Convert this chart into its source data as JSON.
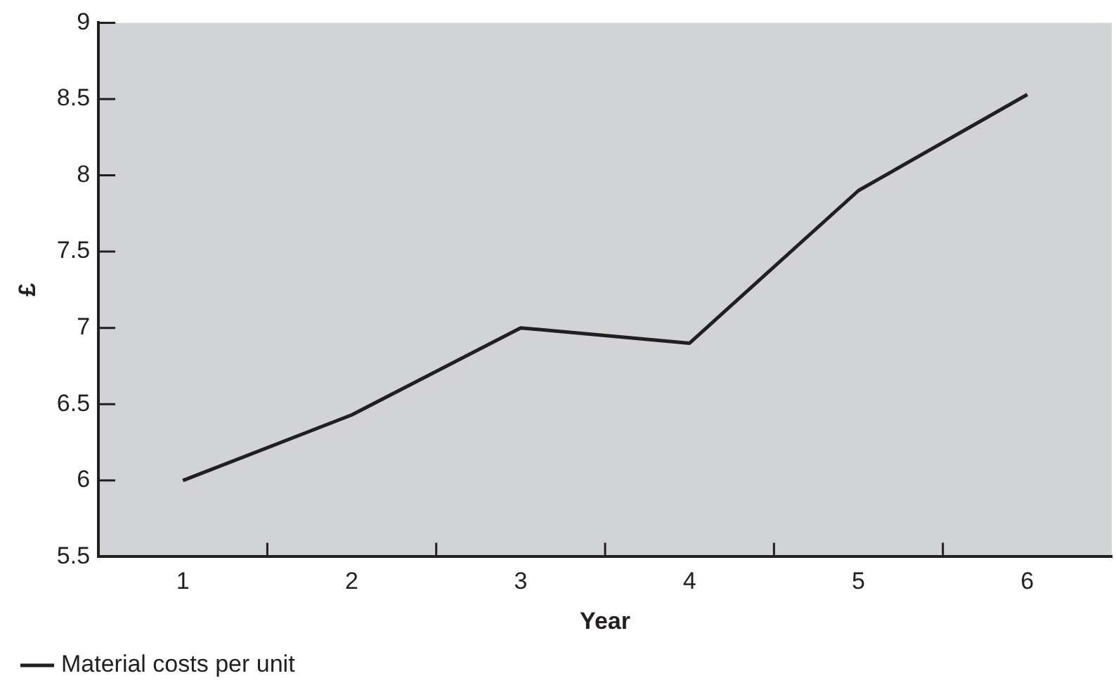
{
  "chart_data": {
    "type": "line",
    "xlabel": "Year",
    "ylabel": "£",
    "categories": [
      "1",
      "2",
      "3",
      "4",
      "5",
      "6"
    ],
    "series": [
      {
        "name": "Material costs per unit",
        "color": "#231f20",
        "values": [
          6,
          6.43,
          7,
          6.9,
          7.9,
          8.53
        ]
      }
    ],
    "ylim": [
      5.5,
      9
    ],
    "yticks": [
      5.5,
      6,
      6.5,
      7,
      7.5,
      8,
      8.5,
      9
    ],
    "grid": false,
    "legend": "bottom left",
    "marker": "none",
    "line_style": "solid"
  }
}
